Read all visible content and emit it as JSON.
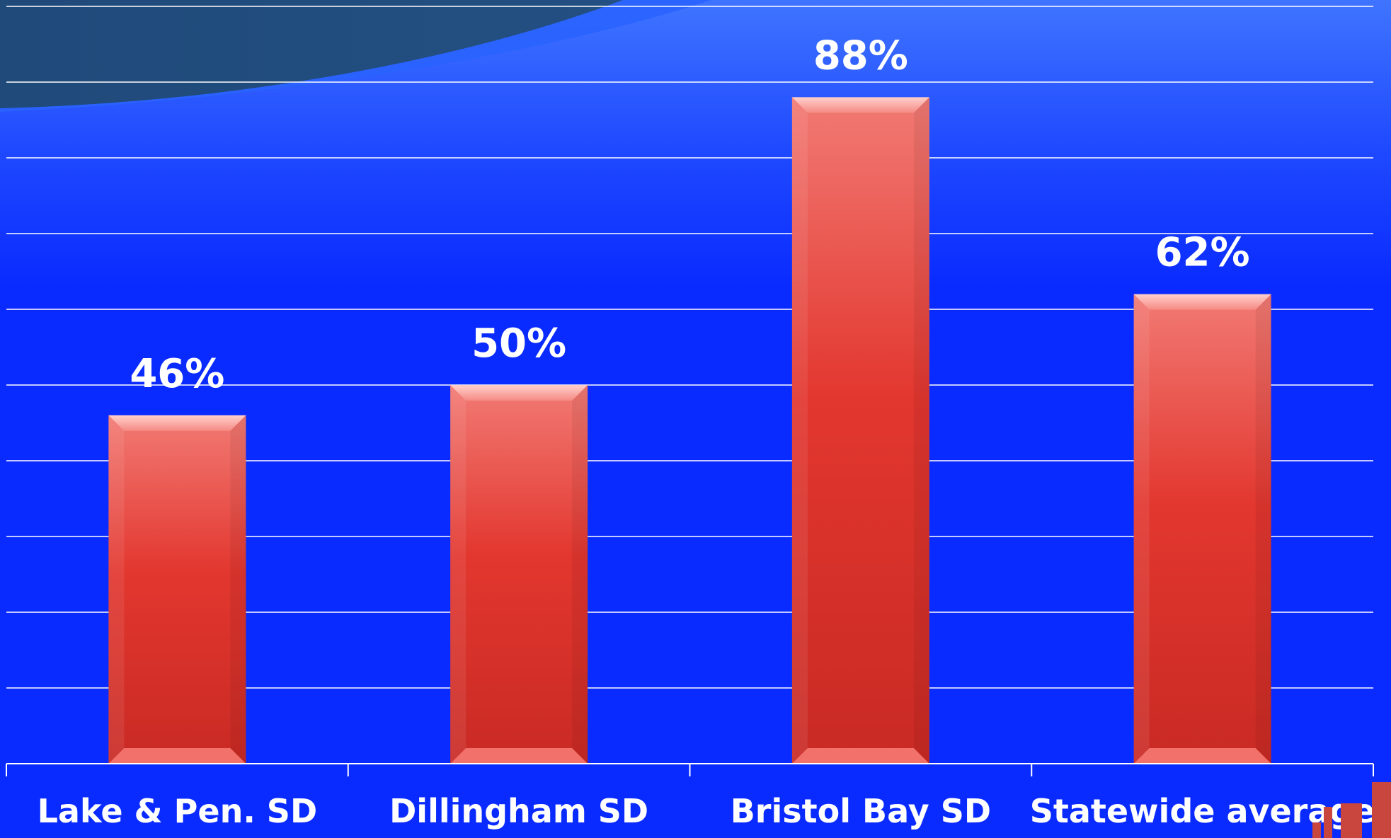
{
  "chart_data": {
    "type": "bar",
    "categories": [
      "Lake & Pen. SD",
      "Dillingham SD",
      "Bristol Bay SD",
      "Statewide average"
    ],
    "values": [
      46,
      50,
      88,
      62
    ],
    "value_labels": [
      "46%",
      "50%",
      "88%",
      "62%"
    ],
    "title": "",
    "xlabel": "",
    "ylabel": "",
    "ylim": [
      0,
      100
    ],
    "grid": true,
    "legend": "none"
  },
  "colors": {
    "background": "#0a2bff",
    "bar": "#e0352f",
    "bar_highlight": "#f07a75",
    "gridline": "#ffffff",
    "text": "#ffffff",
    "swoosh": "#1f4a7a"
  }
}
